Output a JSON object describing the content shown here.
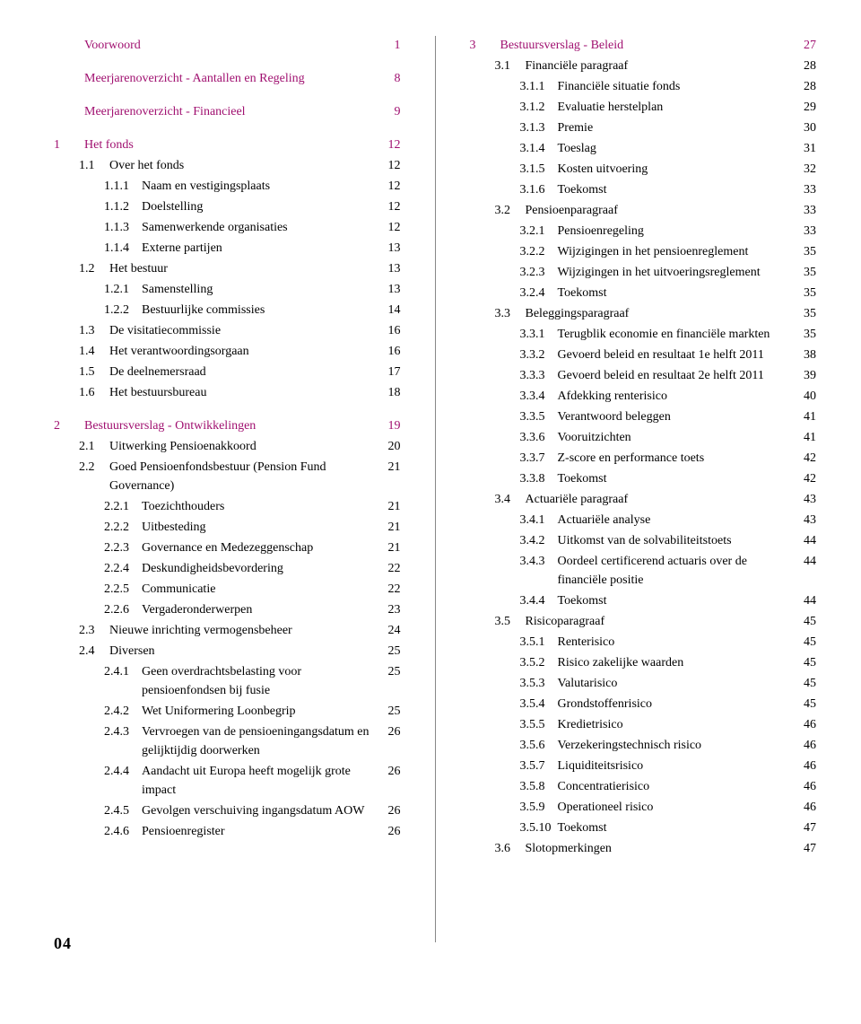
{
  "colors": {
    "accent": "#a01070",
    "text": "#000000",
    "background": "#ffffff",
    "divider": "#888888"
  },
  "page_number": "04",
  "left": [
    {
      "type": "row",
      "accent": true,
      "num": "",
      "label": "Voorwoord",
      "page": "1"
    },
    {
      "type": "spacer"
    },
    {
      "type": "row",
      "accent": true,
      "num": "",
      "label": "Meerjarenoverzicht - Aantallen en Regeling",
      "page": "8"
    },
    {
      "type": "spacer"
    },
    {
      "type": "row",
      "accent": true,
      "num": "",
      "label": "Meerjarenoverzicht - Financieel",
      "page": "9"
    },
    {
      "type": "spacer"
    },
    {
      "type": "row",
      "accent": true,
      "num": "1",
      "label": "Het fonds",
      "page": "12"
    },
    {
      "type": "row",
      "indent": 1,
      "num": "1.1",
      "label": "Over het fonds",
      "page": "12"
    },
    {
      "type": "row",
      "indent": 2,
      "num": "1.1.1",
      "label": "Naam en vestigingsplaats",
      "page": "12"
    },
    {
      "type": "row",
      "indent": 2,
      "num": "1.1.2",
      "label": "Doelstelling",
      "page": "12"
    },
    {
      "type": "row",
      "indent": 2,
      "num": "1.1.3",
      "label": "Samenwerkende organisaties",
      "page": "12"
    },
    {
      "type": "row",
      "indent": 2,
      "num": "1.1.4",
      "label": "Externe partijen",
      "page": "13"
    },
    {
      "type": "row",
      "indent": 1,
      "num": "1.2",
      "label": "Het bestuur",
      "page": "13"
    },
    {
      "type": "row",
      "indent": 2,
      "num": "1.2.1",
      "label": "Samenstelling",
      "page": "13"
    },
    {
      "type": "row",
      "indent": 2,
      "num": "1.2.2",
      "label": "Bestuurlijke commissies",
      "page": "14"
    },
    {
      "type": "row",
      "indent": 1,
      "num": "1.3",
      "label": "De visitatiecommissie",
      "page": "16"
    },
    {
      "type": "row",
      "indent": 1,
      "num": "1.4",
      "label": "Het verantwoordingsorgaan",
      "page": "16"
    },
    {
      "type": "row",
      "indent": 1,
      "num": "1.5",
      "label": "De deelnemersraad",
      "page": "17"
    },
    {
      "type": "row",
      "indent": 1,
      "num": "1.6",
      "label": "Het bestuursbureau",
      "page": "18"
    },
    {
      "type": "spacer"
    },
    {
      "type": "row",
      "accent": true,
      "num": "2",
      "label": "Bestuursverslag - Ontwikkelingen",
      "page": "19"
    },
    {
      "type": "row",
      "indent": 1,
      "num": "2.1",
      "label": "Uitwerking Pensioenakkoord",
      "page": "20"
    },
    {
      "type": "row",
      "indent": 1,
      "num": "2.2",
      "label": "Goed Pensioenfondsbestuur (Pension Fund Governance)",
      "page": "21"
    },
    {
      "type": "row",
      "indent": 2,
      "num": "2.2.1",
      "label": "Toezichthouders",
      "page": "21"
    },
    {
      "type": "row",
      "indent": 2,
      "num": "2.2.2",
      "label": "Uitbesteding",
      "page": "21"
    },
    {
      "type": "row",
      "indent": 2,
      "num": "2.2.3",
      "label": "Governance en Medezeggenschap",
      "page": "21"
    },
    {
      "type": "row",
      "indent": 2,
      "num": "2.2.4",
      "label": "Deskundigheidsbevordering",
      "page": "22"
    },
    {
      "type": "row",
      "indent": 2,
      "num": "2.2.5",
      "label": "Communicatie",
      "page": "22"
    },
    {
      "type": "row",
      "indent": 2,
      "num": "2.2.6",
      "label": "Vergaderonderwerpen",
      "page": "23"
    },
    {
      "type": "row",
      "indent": 1,
      "num": "2.3",
      "label": " Nieuwe inrichting vermogensbeheer",
      "page": "24"
    },
    {
      "type": "row",
      "indent": 1,
      "num": "2.4",
      "label": "Diversen",
      "page": "25"
    },
    {
      "type": "row",
      "indent": 2,
      "num": "2.4.1",
      "label": "Geen overdrachtsbelasting voor pensioenfondsen bij fusie",
      "page": "25"
    },
    {
      "type": "row",
      "indent": 2,
      "num": "2.4.2",
      "label": "Wet Uniformering Loonbegrip",
      "page": "25"
    },
    {
      "type": "row",
      "indent": 2,
      "num": "2.4.3",
      "label": "Vervroegen van de pensioeningangs­datum en gelijktijdig doorwerken",
      "page": "26"
    },
    {
      "type": "row",
      "indent": 2,
      "num": "2.4.4",
      "label": "Aandacht uit Europa heeft mogelijk grote impact",
      "page": "26"
    },
    {
      "type": "row",
      "indent": 2,
      "num": "2.4.5",
      "label": "Gevolgen verschuiving ingangsdatum AOW",
      "page": "26"
    },
    {
      "type": "row",
      "indent": 2,
      "num": "2.4.6",
      "label": "Pensioenregister",
      "page": "26"
    }
  ],
  "right": [
    {
      "type": "row",
      "accent": true,
      "num": "3",
      "label": "Bestuursverslag - Beleid",
      "page": "27"
    },
    {
      "type": "row",
      "indent": 1,
      "num": "3.1",
      "label": "Financiële paragraaf",
      "page": "28"
    },
    {
      "type": "row",
      "indent": 2,
      "num": "3.1.1",
      "label": "Financiële situatie fonds",
      "page": "28"
    },
    {
      "type": "row",
      "indent": 2,
      "num": "3.1.2",
      "label": "Evaluatie herstelplan",
      "page": "29"
    },
    {
      "type": "row",
      "indent": 2,
      "num": "3.1.3",
      "label": "Premie",
      "page": "30"
    },
    {
      "type": "row",
      "indent": 2,
      "num": "3.1.4",
      "label": "Toeslag",
      "page": "31"
    },
    {
      "type": "row",
      "indent": 2,
      "num": "3.1.5",
      "label": "Kosten uitvoering",
      "page": "32"
    },
    {
      "type": "row",
      "indent": 2,
      "num": "3.1.6",
      "label": "Toekomst",
      "page": "33"
    },
    {
      "type": "row",
      "indent": 1,
      "num": "3.2",
      "label": "Pensioenparagraaf",
      "page": "33"
    },
    {
      "type": "row",
      "indent": 2,
      "num": "3.2.1",
      "label": "Pensioenregeling",
      "page": "33"
    },
    {
      "type": "row",
      "indent": 2,
      "num": "3.2.2",
      "label": "Wijzigingen in het pensioenreglement",
      "page": "35"
    },
    {
      "type": "row",
      "indent": 2,
      "num": "3.2.3",
      "label": "Wijzigingen in het uitvoeringsreglement",
      "page": "35"
    },
    {
      "type": "row",
      "indent": 2,
      "num": "3.2.4",
      "label": "Toekomst",
      "page": "35"
    },
    {
      "type": "row",
      "indent": 1,
      "num": "3.3",
      "label": "Beleggingsparagraaf",
      "page": "35"
    },
    {
      "type": "row",
      "indent": 2,
      "num": "3.3.1",
      "label": "Terugblik economie en financiële markten",
      "page": "35"
    },
    {
      "type": "row",
      "indent": 2,
      "num": "3.3.2",
      "label": "Gevoerd beleid en resultaat 1e helft 2011",
      "page": "38"
    },
    {
      "type": "row",
      "indent": 2,
      "num": "3.3.3",
      "label": "Gevoerd beleid en resultaat 2e helft 2011",
      "page": "39"
    },
    {
      "type": "row",
      "indent": 2,
      "num": "3.3.4",
      "label": "Afdekking renterisico",
      "page": "40"
    },
    {
      "type": "row",
      "indent": 2,
      "num": "3.3.5",
      "label": "Verantwoord beleggen",
      "page": "41"
    },
    {
      "type": "row",
      "indent": 2,
      "num": "3.3.6",
      "label": "Vooruitzichten",
      "page": "41"
    },
    {
      "type": "row",
      "indent": 2,
      "num": "3.3.7",
      "label": "Z-score en performance toets",
      "page": "42"
    },
    {
      "type": "row",
      "indent": 2,
      "num": "3.3.8",
      "label": "Toekomst",
      "page": "42"
    },
    {
      "type": "row",
      "indent": 1,
      "num": "3.4",
      "label": "Actuariële paragraaf",
      "page": "43"
    },
    {
      "type": "row",
      "indent": 2,
      "num": "3.4.1",
      "label": "Actuariële analyse",
      "page": "43"
    },
    {
      "type": "row",
      "indent": 2,
      "num": "3.4.2",
      "label": "Uitkomst van de solvabiliteitstoets",
      "page": "44"
    },
    {
      "type": "row",
      "indent": 2,
      "num": "3.4.3",
      "label": "Oordeel certificerend actuaris over de financiële positie",
      "page": "44"
    },
    {
      "type": "row",
      "indent": 2,
      "num": "3.4.4",
      "label": "Toekomst",
      "page": "44"
    },
    {
      "type": "row",
      "indent": 1,
      "num": "3.5",
      "label": "Risicoparagraaf",
      "page": "45"
    },
    {
      "type": "row",
      "indent": 2,
      "num": "3.5.1",
      "label": "Renterisico",
      "page": "45"
    },
    {
      "type": "row",
      "indent": 2,
      "num": "3.5.2",
      "label": "Risico zakelijke waarden",
      "page": "45"
    },
    {
      "type": "row",
      "indent": 2,
      "num": "3.5.3",
      "label": "Valutarisico",
      "page": "45"
    },
    {
      "type": "row",
      "indent": 2,
      "num": "3.5.4",
      "label": "Grondstoffenrisico",
      "page": "45"
    },
    {
      "type": "row",
      "indent": 2,
      "num": "3.5.5",
      "label": "Kredietrisico",
      "page": "46"
    },
    {
      "type": "row",
      "indent": 2,
      "num": "3.5.6",
      "label": "Verzekeringstechnisch risico",
      "page": "46"
    },
    {
      "type": "row",
      "indent": 2,
      "num": "3.5.7",
      "label": "Liquiditeitsrisico",
      "page": "46"
    },
    {
      "type": "row",
      "indent": 2,
      "num": "3.5.8",
      "label": "Concentratierisico",
      "page": "46"
    },
    {
      "type": "row",
      "indent": 2,
      "num": "3.5.9",
      "label": "Operationeel risico",
      "page": "46"
    },
    {
      "type": "row",
      "indent": 2,
      "num": "3.5.10",
      "label": "Toekomst",
      "page": "47"
    },
    {
      "type": "row",
      "indent": 1,
      "num": "3.6",
      "label": "Slotopmerkingen",
      "page": "47"
    }
  ]
}
